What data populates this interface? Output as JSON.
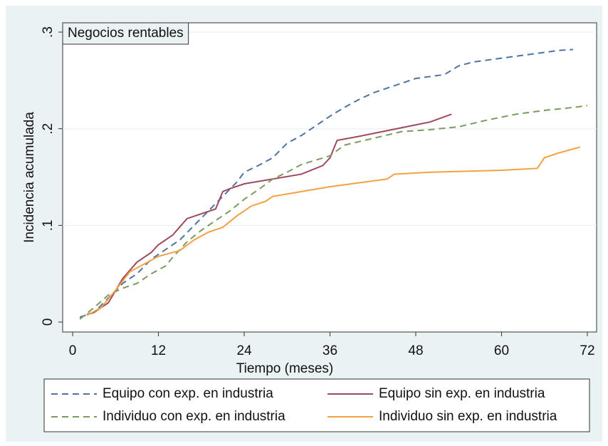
{
  "chart_data": {
    "type": "line",
    "title": "Negocios rentables",
    "xlabel": "Tiempo (meses)",
    "ylabel": "Incidencia acumulada",
    "xlim": [
      -1.4,
      73.3
    ],
    "xticks": [
      0,
      12,
      24,
      36,
      48,
      60,
      72
    ],
    "ylim": [
      -0.0103,
      0.3096
    ],
    "yticks": [
      0,
      {
        "value": 0.1,
        "label": ".1"
      },
      {
        "value": 0.2,
        "label": ".2"
      },
      {
        "value": 0.3,
        "label": ".3"
      }
    ],
    "grid": true,
    "legend": "bottom",
    "series": [
      {
        "name": "Equipo con exp. en industria",
        "color": "#4f74a3",
        "style": "dash",
        "x": [
          1,
          3,
          5,
          7,
          9,
          11,
          13,
          15,
          17,
          19,
          21,
          23,
          24,
          26,
          28,
          30,
          32,
          34,
          36,
          38,
          40,
          42,
          44,
          46,
          48,
          50,
          52,
          54,
          56,
          60,
          64,
          68,
          70
        ],
        "values": [
          0.005,
          0.01,
          0.025,
          0.04,
          0.05,
          0.065,
          0.075,
          0.085,
          0.1,
          0.115,
          0.13,
          0.145,
          0.155,
          0.162,
          0.17,
          0.185,
          0.193,
          0.203,
          0.213,
          0.222,
          0.23,
          0.237,
          0.242,
          0.247,
          0.252,
          0.254,
          0.256,
          0.265,
          0.269,
          0.273,
          0.277,
          0.281,
          0.282
        ]
      },
      {
        "name": "Equipo sin exp. en industria",
        "color": "#9e4a5c",
        "style": "solid",
        "x": [
          2,
          3,
          5,
          7,
          9,
          11,
          12,
          14,
          16,
          18,
          20,
          21,
          22,
          24,
          28,
          32,
          35,
          36,
          37,
          40,
          44,
          48,
          50,
          53
        ],
        "values": [
          0.008,
          0.01,
          0.02,
          0.045,
          0.062,
          0.072,
          0.08,
          0.09,
          0.107,
          0.112,
          0.117,
          0.135,
          0.138,
          0.143,
          0.148,
          0.153,
          0.162,
          0.17,
          0.188,
          0.192,
          0.198,
          0.204,
          0.207,
          0.215
        ]
      },
      {
        "name": "Individuo con exp. en industria",
        "color": "#7d9b5c",
        "style": "dash",
        "x": [
          1,
          3,
          5,
          7,
          9,
          11,
          13,
          14,
          16,
          18,
          20,
          22,
          24,
          26,
          28,
          30,
          32,
          36,
          38,
          42,
          46,
          50,
          54,
          58,
          62,
          66,
          70,
          72
        ],
        "values": [
          0.003,
          0.015,
          0.028,
          0.035,
          0.04,
          0.05,
          0.058,
          0.067,
          0.083,
          0.095,
          0.105,
          0.115,
          0.127,
          0.137,
          0.148,
          0.155,
          0.163,
          0.172,
          0.183,
          0.19,
          0.197,
          0.199,
          0.202,
          0.209,
          0.215,
          0.219,
          0.222,
          0.224
        ]
      },
      {
        "name": "Individuo sin exp. en industria",
        "color": "#f5a142",
        "style": "solid",
        "x": [
          2,
          4,
          6,
          8,
          10,
          12,
          15,
          17,
          19,
          21,
          23,
          25,
          27,
          28,
          32,
          36,
          40,
          44,
          45,
          50,
          55,
          60,
          65,
          66,
          68,
          71
        ],
        "values": [
          0.007,
          0.015,
          0.033,
          0.052,
          0.06,
          0.068,
          0.074,
          0.085,
          0.093,
          0.098,
          0.11,
          0.12,
          0.125,
          0.13,
          0.135,
          0.14,
          0.144,
          0.148,
          0.153,
          0.155,
          0.156,
          0.157,
          0.159,
          0.17,
          0.175,
          0.181
        ]
      }
    ]
  }
}
